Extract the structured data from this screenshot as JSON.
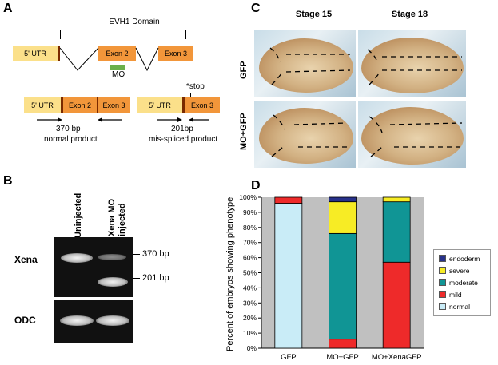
{
  "panels": {
    "a": "A",
    "b": "B",
    "c": "C",
    "d": "D"
  },
  "panel_a": {
    "domain_label": "EVH1 Domain",
    "utr": "5' UTR",
    "exon2": "Exon 2",
    "exon3": "Exon 3",
    "mo": "MO",
    "stop": "*stop",
    "normal_bp": "370 bp",
    "normal_caption": "normal product",
    "mis_bp": "201bp",
    "mis_caption": "mis-spliced product",
    "colors": {
      "utr": "#fbe08a",
      "exon": "#f2963a",
      "mo": "#6ab04c"
    }
  },
  "panel_b": {
    "lane1": "Uninjected",
    "lane2_line1": "Xena MO",
    "lane2_line2": "injected",
    "row1": "Xena",
    "row2": "ODC",
    "band_370": "370 bp",
    "band_201": "201 bp"
  },
  "panel_c": {
    "stage15": "Stage 15",
    "stage18": "Stage 18",
    "row_gfp": "GFP",
    "row_mo": "MO+GFP"
  },
  "chart_data": {
    "type": "bar",
    "stacked": true,
    "categories": [
      "GFP",
      "MO+GFP",
      "MO+XenaGFP"
    ],
    "ylabel": "Percent of embryos showing phenotype",
    "ylim": [
      0,
      100
    ],
    "yticks": [
      "0%",
      "10%",
      "20%",
      "30%",
      "40%",
      "50%",
      "60%",
      "70%",
      "80%",
      "90%",
      "100%"
    ],
    "legend_position": "right",
    "series": [
      {
        "name": "normal",
        "color": "#c9ecf7",
        "values": [
          96,
          0,
          0
        ]
      },
      {
        "name": "mild",
        "color": "#ee2a2a",
        "values": [
          4,
          6,
          57
        ]
      },
      {
        "name": "moderate",
        "color": "#109595",
        "values": [
          0,
          70,
          40
        ]
      },
      {
        "name": "severe",
        "color": "#f7ec25",
        "values": [
          0,
          21,
          3
        ]
      },
      {
        "name": "endoderm",
        "color": "#27318a",
        "values": [
          0,
          3,
          0
        ]
      }
    ],
    "legend_order": [
      "endoderm",
      "severe",
      "moderate",
      "mild",
      "normal"
    ]
  }
}
